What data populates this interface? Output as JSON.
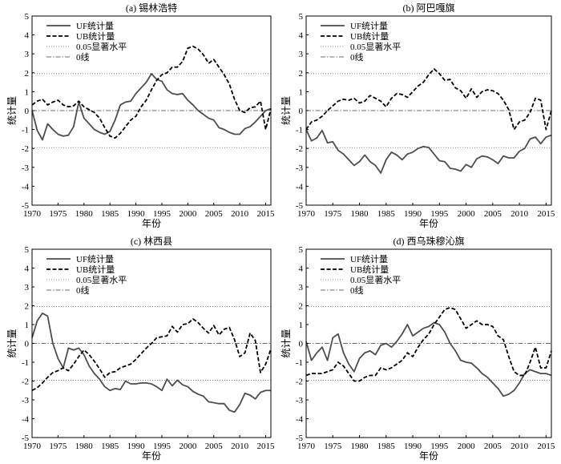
{
  "chart_data": [
    {
      "type": "line",
      "title": "(a) 锡林浩特",
      "xlabel": "年份",
      "ylabel": "统计量",
      "xlim": [
        1970,
        2016
      ],
      "ylim": [
        -5,
        5
      ],
      "x_ticks": [
        1970,
        1975,
        1980,
        1985,
        1990,
        1995,
        2000,
        2005,
        2010,
        2015
      ],
      "y_ticks": [
        5,
        4,
        3,
        2,
        1,
        0,
        -1,
        -2,
        -3,
        -4,
        -5
      ],
      "legend": "top-left",
      "grid": false,
      "x": [
        1970,
        1971,
        1972,
        1973,
        1974,
        1975,
        1976,
        1977,
        1978,
        1979,
        1980,
        1981,
        1982,
        1983,
        1984,
        1985,
        1986,
        1987,
        1988,
        1989,
        1990,
        1991,
        1992,
        1993,
        1994,
        1995,
        1996,
        1997,
        1998,
        1999,
        2000,
        2001,
        2002,
        2003,
        2004,
        2005,
        2006,
        2007,
        2008,
        2009,
        2010,
        2011,
        2012,
        2013,
        2014,
        2015,
        2016
      ],
      "series": [
        {
          "name": "UF统计量",
          "color": "#4d4d4d",
          "values": [
            0,
            -1.05,
            -1.55,
            -0.7,
            -1.0,
            -1.25,
            -1.35,
            -1.3,
            -0.85,
            0.45,
            -0.4,
            -0.7,
            -1.0,
            -1.15,
            -1.25,
            -1.1,
            -0.5,
            0.3,
            0.45,
            0.5,
            0.9,
            1.2,
            1.5,
            1.95,
            1.65,
            1.55,
            1.1,
            0.9,
            0.85,
            0.9,
            0.55,
            0.3,
            0,
            -0.2,
            -0.4,
            -0.5,
            -0.9,
            -1.0,
            -1.15,
            -1.25,
            -1.25,
            -0.95,
            -0.85,
            -0.6,
            -0.3,
            0,
            0.1
          ]
        },
        {
          "name": "UB统计量",
          "color": "#000000",
          "values": [
            0.3,
            0.5,
            0.6,
            0.3,
            0.45,
            0.55,
            0.3,
            0.2,
            0.25,
            0.5,
            0.2,
            0.05,
            -0.1,
            -0.4,
            -0.9,
            -1.35,
            -1.45,
            -1.2,
            -0.85,
            -0.5,
            -0.3,
            0.2,
            0.55,
            1.1,
            1.6,
            1.9,
            2.0,
            2.3,
            2.3,
            2.6,
            3.3,
            3.4,
            3.25,
            2.95,
            2.5,
            2.7,
            2.3,
            1.9,
            1.4,
            0.6,
            0,
            -0.1,
            0.15,
            0.2,
            0.5,
            -1.0,
            0.1
          ]
        }
      ],
      "reference_lines": [
        {
          "name": "0.05显著水平",
          "color": "#8c8c8c",
          "values": [
            1.96,
            -1.96
          ]
        },
        {
          "name": "0线",
          "color": "#6e6e6e",
          "values": [
            0
          ]
        }
      ]
    },
    {
      "type": "line",
      "title": "(b) 阿巴嘎旗",
      "xlabel": "年份",
      "ylabel": "统计量",
      "xlim": [
        1970,
        2016
      ],
      "ylim": [
        -5,
        5
      ],
      "x_ticks": [
        1970,
        1975,
        1980,
        1985,
        1990,
        1995,
        2000,
        2005,
        2010,
        2015
      ],
      "y_ticks": [
        5,
        4,
        3,
        2,
        1,
        0,
        -1,
        -2,
        -3,
        -4,
        -5
      ],
      "legend": "top-left",
      "grid": false,
      "x": [
        1970,
        1971,
        1972,
        1973,
        1974,
        1975,
        1976,
        1977,
        1978,
        1979,
        1980,
        1981,
        1982,
        1983,
        1984,
        1985,
        1986,
        1987,
        1988,
        1989,
        1990,
        1991,
        1992,
        1993,
        1994,
        1995,
        1996,
        1997,
        1998,
        1999,
        2000,
        2001,
        2002,
        2003,
        2004,
        2005,
        2006,
        2007,
        2008,
        2009,
        2010,
        2011,
        2012,
        2013,
        2014,
        2015,
        2016
      ],
      "series": [
        {
          "name": "UF统计量",
          "color": "#4d4d4d",
          "values": [
            -1.0,
            -1.6,
            -1.45,
            -1.05,
            -1.7,
            -1.65,
            -2.1,
            -2.3,
            -2.6,
            -2.9,
            -2.7,
            -2.35,
            -2.7,
            -2.9,
            -3.3,
            -2.6,
            -2.2,
            -2.35,
            -2.6,
            -2.3,
            -2.2,
            -2.0,
            -1.9,
            -1.95,
            -2.3,
            -2.65,
            -2.7,
            -3.05,
            -3.1,
            -3.2,
            -2.85,
            -3.0,
            -2.55,
            -2.4,
            -2.45,
            -2.6,
            -2.8,
            -2.4,
            -2.5,
            -2.5,
            -2.15,
            -2.0,
            -1.5,
            -1.4,
            -1.75,
            -1.4,
            -1.3
          ]
        },
        {
          "name": "UB统计量",
          "color": "#000000",
          "values": [
            -1.0,
            -0.6,
            -0.5,
            -0.3,
            0,
            0.25,
            0.5,
            0.6,
            0.55,
            0.65,
            0.4,
            0.5,
            0.8,
            0.65,
            0.5,
            0.2,
            0.65,
            0.9,
            0.85,
            0.7,
            1.0,
            1.3,
            1.5,
            1.9,
            2.2,
            1.95,
            1.6,
            1.65,
            1.2,
            1.05,
            0.65,
            1.15,
            0.7,
            1.0,
            1.1,
            1.05,
            0.9,
            0.55,
            0.05,
            -1.0,
            -0.6,
            -0.5,
            -0.1,
            0.65,
            0.55,
            -1.0,
            0
          ]
        }
      ],
      "reference_lines": [
        {
          "name": "0.05显著水平",
          "color": "#8c8c8c",
          "values": [
            1.96,
            -1.96
          ]
        },
        {
          "name": "0线",
          "color": "#6e6e6e",
          "values": [
            0
          ]
        }
      ]
    },
    {
      "type": "line",
      "title": "(c) 林西县",
      "xlabel": "年份",
      "ylabel": "统计量",
      "xlim": [
        1970,
        2016
      ],
      "ylim": [
        -5,
        5
      ],
      "x_ticks": [
        1970,
        1975,
        1980,
        1985,
        1990,
        1995,
        2000,
        2005,
        2010,
        2015
      ],
      "y_ticks": [
        5,
        4,
        3,
        2,
        1,
        0,
        -1,
        -2,
        -3,
        -4,
        -5
      ],
      "legend": "top-left",
      "grid": false,
      "x": [
        1970,
        1971,
        1972,
        1973,
        1974,
        1975,
        1976,
        1977,
        1978,
        1979,
        1980,
        1981,
        1982,
        1983,
        1984,
        1985,
        1986,
        1987,
        1988,
        1989,
        1990,
        1991,
        1992,
        1993,
        1994,
        1995,
        1996,
        1997,
        1998,
        1999,
        2000,
        2001,
        2002,
        2003,
        2004,
        2005,
        2006,
        2007,
        2008,
        2009,
        2010,
        2011,
        2012,
        2013,
        2014,
        2015,
        2016
      ],
      "series": [
        {
          "name": "UF统计量",
          "color": "#4d4d4d",
          "values": [
            0.3,
            1.2,
            1.6,
            1.45,
            0,
            -0.8,
            -1.3,
            -0.25,
            -0.35,
            -0.25,
            -0.6,
            -1.2,
            -1.6,
            -1.9,
            -2.3,
            -2.5,
            -2.4,
            -2.45,
            -2.0,
            -2.15,
            -2.15,
            -2.1,
            -2.1,
            -2.15,
            -2.3,
            -2.5,
            -1.9,
            -2.25,
            -1.95,
            -2.2,
            -2.3,
            -2.55,
            -2.7,
            -2.8,
            -3.1,
            -3.15,
            -3.2,
            -3.2,
            -3.55,
            -3.65,
            -3.25,
            -2.65,
            -2.75,
            -2.95,
            -2.6,
            -2.5,
            -2.5
          ]
        },
        {
          "name": "UB统计量",
          "color": "#000000",
          "values": [
            -2.5,
            -2.35,
            -2.1,
            -1.8,
            -1.55,
            -1.45,
            -1.3,
            -1.45,
            -1.1,
            -0.7,
            -0.35,
            -0.6,
            -0.95,
            -1.35,
            -1.8,
            -1.55,
            -1.5,
            -1.3,
            -1.2,
            -1.1,
            -0.85,
            -0.55,
            -0.25,
            0,
            0.3,
            0.35,
            0.4,
            0.9,
            0.6,
            1.0,
            1.05,
            1.3,
            1.1,
            0.8,
            0.55,
            0.95,
            0.45,
            0.75,
            0.85,
            0.2,
            -0.7,
            -0.5,
            0.55,
            0.15,
            -1.55,
            -1.1,
            -0.3
          ]
        }
      ],
      "reference_lines": [
        {
          "name": "0.05显著水平",
          "color": "#8c8c8c",
          "values": [
            1.96,
            -1.96
          ]
        },
        {
          "name": "0线",
          "color": "#6e6e6e",
          "values": [
            0
          ]
        }
      ]
    },
    {
      "type": "line",
      "title": "(d) 西乌珠穆沁旗",
      "xlabel": "年份",
      "ylabel": "统计量",
      "xlim": [
        1970,
        2016
      ],
      "ylim": [
        -5,
        5
      ],
      "x_ticks": [
        1970,
        1975,
        1980,
        1985,
        1990,
        1995,
        2000,
        2005,
        2010,
        2015
      ],
      "y_ticks": [
        5,
        4,
        3,
        2,
        1,
        0,
        -1,
        -2,
        -3,
        -4,
        -5
      ],
      "legend": "top-left",
      "grid": false,
      "x": [
        1970,
        1971,
        1972,
        1973,
        1974,
        1975,
        1976,
        1977,
        1978,
        1979,
        1980,
        1981,
        1982,
        1983,
        1984,
        1985,
        1986,
        1987,
        1988,
        1989,
        1990,
        1991,
        1992,
        1993,
        1994,
        1995,
        1996,
        1997,
        1998,
        1999,
        2000,
        2001,
        2002,
        2003,
        2004,
        2005,
        2006,
        2007,
        2008,
        2009,
        2010,
        2011,
        2012,
        2013,
        2014,
        2015,
        2016
      ],
      "series": [
        {
          "name": "UF统计量",
          "color": "#4d4d4d",
          "values": [
            0.1,
            -0.9,
            -0.5,
            -0.2,
            -0.9,
            0.3,
            0.5,
            -0.5,
            -1.1,
            -1.5,
            -0.8,
            -0.5,
            -0.4,
            -0.6,
            -0.1,
            0,
            -0.2,
            0.1,
            0.5,
            1.0,
            0.4,
            0.6,
            0.8,
            0.9,
            1.1,
            1.0,
            0.6,
            0,
            -0.4,
            -0.9,
            -1.0,
            -1.05,
            -1.3,
            -1.6,
            -1.8,
            -2.1,
            -2.4,
            -2.8,
            -2.7,
            -2.5,
            -2.1,
            -1.6,
            -1.4,
            -1.5,
            -1.6,
            -1.6,
            -1.7
          ]
        },
        {
          "name": "UB统计量",
          "color": "#000000",
          "values": [
            -1.7,
            -1.6,
            -1.6,
            -1.6,
            -1.5,
            -1.4,
            -1.0,
            -1.2,
            -1.6,
            -2.0,
            -2.0,
            -1.8,
            -1.7,
            -1.7,
            -1.3,
            -1.4,
            -1.3,
            -1.1,
            -0.9,
            -0.5,
            -0.7,
            -0.2,
            0.2,
            0.5,
            1.0,
            1.4,
            1.8,
            1.9,
            1.8,
            1.3,
            0.8,
            1.0,
            1.2,
            1.0,
            1.0,
            0.9,
            0.4,
            0.2,
            -0.7,
            -1.5,
            -1.7,
            -1.7,
            -1.0,
            -0.2,
            -1.3,
            -1.3,
            -0.4
          ]
        }
      ],
      "reference_lines": [
        {
          "name": "0.05显著水平",
          "color": "#8c8c8c",
          "values": [
            1.96,
            -1.96
          ]
        },
        {
          "name": "0线",
          "color": "#6e6e6e",
          "values": [
            0
          ]
        }
      ]
    }
  ]
}
